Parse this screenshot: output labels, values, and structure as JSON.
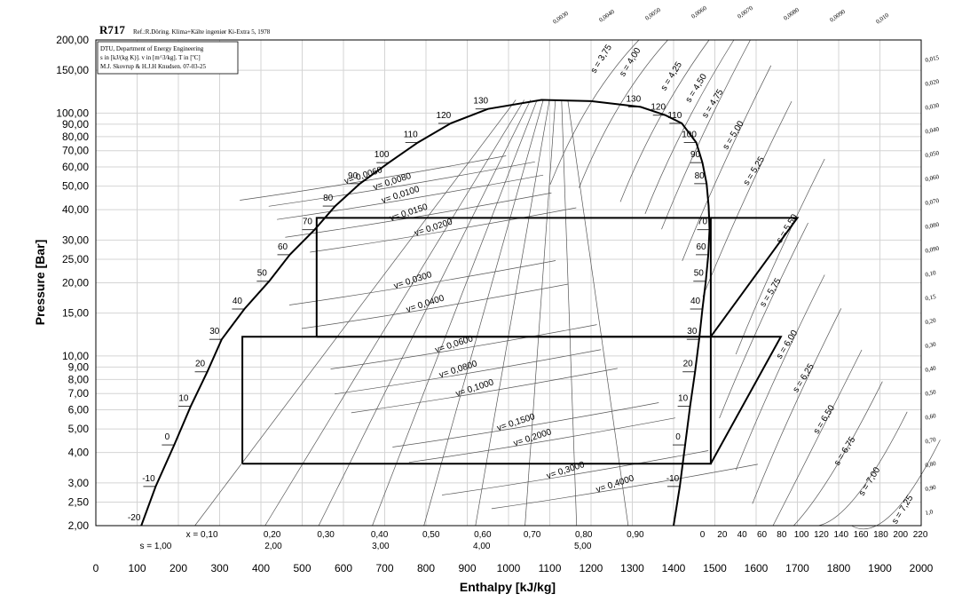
{
  "chart_data": {
    "type": "line",
    "title": "R717",
    "subtitle": "Ref.:R.Döring. Klima+Kälte ingeniør Ki-Extra 5, 1978",
    "info_box": [
      "DTU, Department of Energy Engineering",
      "s in [kJ/(kg K)]. v in [m^3/kg]. T in [ºC]",
      "M.J. Skovrup & H.J.H Knudsen. 07-03-25"
    ],
    "xlabel": "Enthalpy [kJ/kg]",
    "ylabel": "Pressure [Bar]",
    "xlim": [
      0,
      2000
    ],
    "ylim": [
      2,
      200
    ],
    "y_scale": "log",
    "grid": true,
    "x_ticks": [
      "0",
      "100",
      "200",
      "300",
      "400",
      "500",
      "600",
      "700",
      "800",
      "900",
      "1000",
      "1100",
      "1200",
      "1300",
      "1400",
      "1500",
      "1600",
      "1700",
      "1800",
      "1900",
      "2000"
    ],
    "y_ticks": [
      {
        "v": 200,
        "label": "200,00"
      },
      {
        "v": 150,
        "label": "150,00"
      },
      {
        "v": 100,
        "label": "100,00"
      },
      {
        "v": 90,
        "label": "90,00"
      },
      {
        "v": 80,
        "label": "80,00"
      },
      {
        "v": 70,
        "label": "70,00"
      },
      {
        "v": 60,
        "label": "60,00"
      },
      {
        "v": 50,
        "label": "50,00"
      },
      {
        "v": 40,
        "label": "40,00"
      },
      {
        "v": 30,
        "label": "30,00"
      },
      {
        "v": 25,
        "label": "25,00"
      },
      {
        "v": 20,
        "label": "20,00"
      },
      {
        "v": 15,
        "label": "15,00"
      },
      {
        "v": 10,
        "label": "10,00"
      },
      {
        "v": 9,
        "label": "9,00"
      },
      {
        "v": 8,
        "label": "8,00"
      },
      {
        "v": 7,
        "label": "7,00"
      },
      {
        "v": 6,
        "label": "6,00"
      },
      {
        "v": 5,
        "label": "5,00"
      },
      {
        "v": 4,
        "label": "4,00"
      },
      {
        "v": 3,
        "label": "3,00"
      },
      {
        "v": 2.5,
        "label": "2,50"
      },
      {
        "v": 2,
        "label": "2,00"
      }
    ],
    "quality_labels": [
      {
        "h": 240,
        "label": "x = 0,10"
      },
      {
        "h": 410,
        "label": "0,20"
      },
      {
        "h": 540,
        "label": "0,30"
      },
      {
        "h": 670,
        "label": "0,40"
      },
      {
        "h": 795,
        "label": "0,50"
      },
      {
        "h": 920,
        "label": "0,60"
      },
      {
        "h": 1040,
        "label": "0,70"
      },
      {
        "h": 1165,
        "label": "0,80"
      },
      {
        "h": 1290,
        "label": "0,90"
      }
    ],
    "entropy_bottom_labels": [
      {
        "h": 145,
        "label": "s = 1,00"
      },
      {
        "h": 430,
        "label": "2,00"
      },
      {
        "h": 690,
        "label": "3,00"
      },
      {
        "h": 935,
        "label": "4,00"
      },
      {
        "h": 1180,
        "label": "5,00"
      }
    ],
    "superheat_temp_labels": [
      "0",
      "20",
      "40",
      "60",
      "80",
      "100",
      "120",
      "140",
      "160",
      "180",
      "200",
      "220"
    ],
    "saturation_curve": {
      "liquid": [
        {
          "h": 110,
          "p": 2.0
        },
        {
          "h": 145,
          "p": 2.9
        },
        {
          "h": 190,
          "p": 4.3
        },
        {
          "h": 230,
          "p": 6.2
        },
        {
          "h": 270,
          "p": 8.6
        },
        {
          "h": 305,
          "p": 11.7
        },
        {
          "h": 360,
          "p": 15.6
        },
        {
          "h": 420,
          "p": 20.3
        },
        {
          "h": 470,
          "p": 26.1
        },
        {
          "h": 530,
          "p": 33.1
        },
        {
          "h": 580,
          "p": 41.4
        },
        {
          "h": 640,
          "p": 51.2
        },
        {
          "h": 710,
          "p": 62.5
        },
        {
          "h": 780,
          "p": 75.6
        },
        {
          "h": 860,
          "p": 90.7
        },
        {
          "h": 950,
          "p": 104
        },
        {
          "h": 1080,
          "p": 113.3
        }
      ],
      "vapor": [
        {
          "h": 1080,
          "p": 113.3
        },
        {
          "h": 1200,
          "p": 112
        },
        {
          "h": 1320,
          "p": 106
        },
        {
          "h": 1380,
          "p": 98
        },
        {
          "h": 1420,
          "p": 90.7
        },
        {
          "h": 1455,
          "p": 75.6
        },
        {
          "h": 1470,
          "p": 62.5
        },
        {
          "h": 1480,
          "p": 51.2
        },
        {
          "h": 1485,
          "p": 41.4
        },
        {
          "h": 1487,
          "p": 33.1
        },
        {
          "h": 1484,
          "p": 26.1
        },
        {
          "h": 1478,
          "p": 20.3
        },
        {
          "h": 1470,
          "p": 15.6
        },
        {
          "h": 1462,
          "p": 11.7
        },
        {
          "h": 1452,
          "p": 8.6
        },
        {
          "h": 1440,
          "p": 6.2
        },
        {
          "h": 1428,
          "p": 4.3
        },
        {
          "h": 1415,
          "p": 2.9
        },
        {
          "h": 1400,
          "p": 2.0
        }
      ]
    },
    "saturation_temp_labels": [
      {
        "h": 110,
        "p": 2.0,
        "label": "-20"
      },
      {
        "h": 145,
        "p": 2.9,
        "label": "-10"
      },
      {
        "h": 190,
        "p": 4.3,
        "label": "0"
      },
      {
        "h": 230,
        "p": 6.2,
        "label": "10"
      },
      {
        "h": 270,
        "p": 8.6,
        "label": "20"
      },
      {
        "h": 305,
        "p": 11.7,
        "label": "30"
      },
      {
        "h": 360,
        "p": 15.6,
        "label": "40"
      },
      {
        "h": 420,
        "p": 20.3,
        "label": "50"
      },
      {
        "h": 470,
        "p": 26.1,
        "label": "60"
      },
      {
        "h": 530,
        "p": 33.1,
        "label": "70"
      },
      {
        "h": 580,
        "p": 41.4,
        "label": "80"
      },
      {
        "h": 640,
        "p": 51.2,
        "label": "90"
      },
      {
        "h": 710,
        "p": 62.5,
        "label": "100"
      },
      {
        "h": 780,
        "p": 75.6,
        "label": "110"
      },
      {
        "h": 860,
        "p": 90.7,
        "label": "120"
      },
      {
        "h": 950,
        "p": 104,
        "label": "130"
      },
      {
        "h": 1320,
        "p": 106,
        "label": "130"
      },
      {
        "h": 1380,
        "p": 98,
        "label": "120"
      },
      {
        "h": 1420,
        "p": 90.7,
        "label": "110"
      },
      {
        "h": 1455,
        "p": 75.6,
        "label": "100"
      },
      {
        "h": 1470,
        "p": 62.5,
        "label": "90"
      },
      {
        "h": 1480,
        "p": 51.2,
        "label": "80"
      },
      {
        "h": 1487,
        "p": 33.1,
        "label": "70"
      },
      {
        "h": 1484,
        "p": 26.1,
        "label": "60"
      },
      {
        "h": 1478,
        "p": 20.3,
        "label": "50"
      },
      {
        "h": 1470,
        "p": 15.6,
        "label": "40"
      },
      {
        "h": 1462,
        "p": 11.7,
        "label": "30"
      },
      {
        "h": 1452,
        "p": 8.6,
        "label": "20"
      },
      {
        "h": 1440,
        "p": 6.2,
        "label": "10"
      },
      {
        "h": 1428,
        "p": 4.3,
        "label": "0"
      },
      {
        "h": 1415,
        "p": 2.9,
        "label": "-10"
      }
    ],
    "specific_volume_labels": [
      {
        "h": 650,
        "p": 54,
        "label": "v= 0,0060"
      },
      {
        "h": 720,
        "p": 51,
        "label": "v= 0,0080"
      },
      {
        "h": 740,
        "p": 45,
        "label": "v= 0,0100"
      },
      {
        "h": 760,
        "p": 38,
        "label": "v= 0,0150"
      },
      {
        "h": 820,
        "p": 33,
        "label": "v= 0,0200"
      },
      {
        "h": 770,
        "p": 20,
        "label": "v= 0,0300"
      },
      {
        "h": 800,
        "p": 16,
        "label": "v= 0,0400"
      },
      {
        "h": 870,
        "p": 10.9,
        "label": "v= 0,0600"
      },
      {
        "h": 880,
        "p": 8.6,
        "label": "v= 0,0800"
      },
      {
        "h": 920,
        "p": 7.2,
        "label": "v= 0,1000"
      },
      {
        "h": 1020,
        "p": 5.2,
        "label": "v= 0,1500"
      },
      {
        "h": 1060,
        "p": 4.5,
        "label": "v= 0,2000"
      },
      {
        "h": 1140,
        "p": 3.3,
        "label": "v= 0,3000"
      },
      {
        "h": 1260,
        "p": 2.9,
        "label": "v= 0,4000"
      }
    ],
    "entropy_labels": [
      {
        "h": 1230,
        "p": 165,
        "label": "s = 3,75"
      },
      {
        "h": 1300,
        "p": 160,
        "label": "s = 4,00"
      },
      {
        "h": 1400,
        "p": 140,
        "label": "s = 4,25"
      },
      {
        "h": 1460,
        "p": 125,
        "label": "s = 4,50"
      },
      {
        "h": 1500,
        "p": 108,
        "label": "s = 4,75"
      },
      {
        "h": 1550,
        "p": 80,
        "label": "s = 5,00"
      },
      {
        "h": 1600,
        "p": 57,
        "label": "s = 5,25"
      },
      {
        "h": 1680,
        "p": 33,
        "label": "s = 5,50"
      },
      {
        "h": 1640,
        "p": 18,
        "label": "s = 5,75"
      },
      {
        "h": 1680,
        "p": 11,
        "label": "s = 6,00"
      },
      {
        "h": 1720,
        "p": 8,
        "label": "s = 6,25"
      },
      {
        "h": 1770,
        "p": 5.4,
        "label": "s = 6,50"
      },
      {
        "h": 1820,
        "p": 4.0,
        "label": "s = 6,75"
      },
      {
        "h": 1880,
        "p": 3.0,
        "label": "s = 7,00"
      },
      {
        "h": 1960,
        "p": 2.3,
        "label": "s = 7,25"
      }
    ],
    "right_volume_labels": [
      "0,0030",
      "0,0040",
      "0,0050",
      "0,0060",
      "0,0070",
      "0,0080",
      "0,0090",
      "0,010",
      "0,015",
      "0,020",
      "0,030",
      "0,040",
      "0,050",
      "0,060",
      "0,070",
      "0,080",
      "0,090",
      "0,10",
      "0,15",
      "0,20",
      "0,30",
      "0,40",
      "0,50",
      "0,60",
      "0,70",
      "0,80",
      "0,90",
      "1,0"
    ],
    "cycles": [
      {
        "points": [
          {
            "h": 535,
            "p": 12
          },
          {
            "h": 535,
            "p": 37
          },
          {
            "h": 1490,
            "p": 37
          },
          {
            "h": 1490,
            "p": 12
          },
          {
            "h": 535,
            "p": 12
          }
        ]
      },
      {
        "points": [
          {
            "h": 355,
            "p": 3.6
          },
          {
            "h": 355,
            "p": 12
          },
          {
            "h": 1490,
            "p": 12
          },
          {
            "h": 1490,
            "p": 3.6
          },
          {
            "h": 355,
            "p": 3.6
          }
        ]
      },
      {
        "points": [
          {
            "h": 1490,
            "p": 12
          },
          {
            "h": 1700,
            "p": 37
          },
          {
            "h": 1490,
            "p": 37
          }
        ]
      },
      {
        "points": [
          {
            "h": 1490,
            "p": 3.6
          },
          {
            "h": 1660,
            "p": 12
          },
          {
            "h": 1490,
            "p": 12
          }
        ]
      }
    ]
  }
}
